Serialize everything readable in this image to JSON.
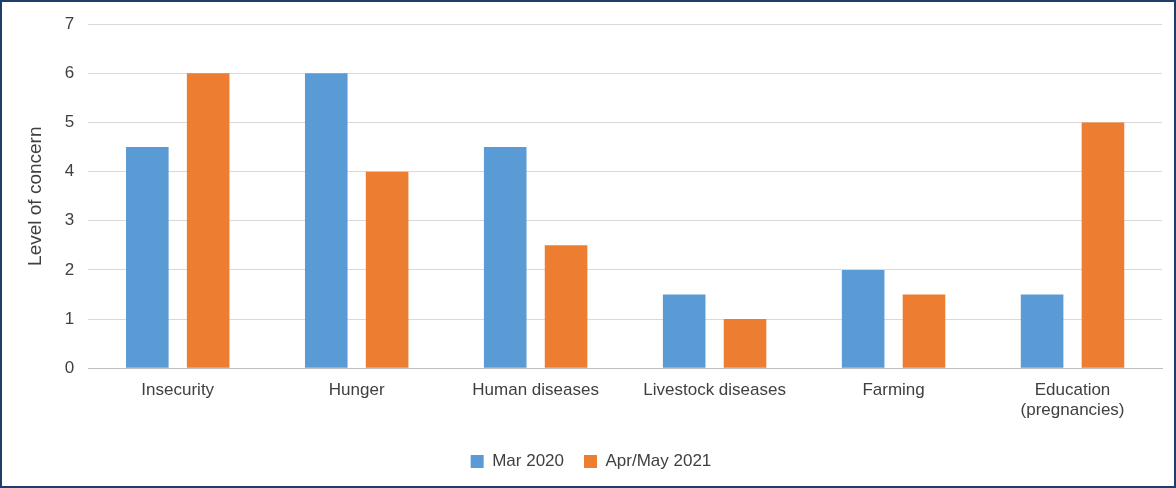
{
  "chart_data": {
    "type": "bar",
    "ylabel": "Level of concern",
    "categories": [
      "Insecurity",
      "Hunger",
      "Human diseases",
      "Livestock diseases",
      "Farming",
      "Education\n(pregnancies)"
    ],
    "series": [
      {
        "name": "Mar 2020",
        "color": "#5b9bd5",
        "values": [
          4.5,
          6,
          4.5,
          1.5,
          2,
          1.5
        ]
      },
      {
        "name": "Apr/May 2021",
        "color": "#ed7d31",
        "values": [
          6,
          4,
          2.5,
          1,
          1.5,
          5
        ]
      }
    ],
    "ylim": [
      0,
      7
    ],
    "yticks": [
      0,
      1,
      2,
      3,
      4,
      5,
      6,
      7
    ],
    "grid": "y",
    "legend": "bottom"
  }
}
